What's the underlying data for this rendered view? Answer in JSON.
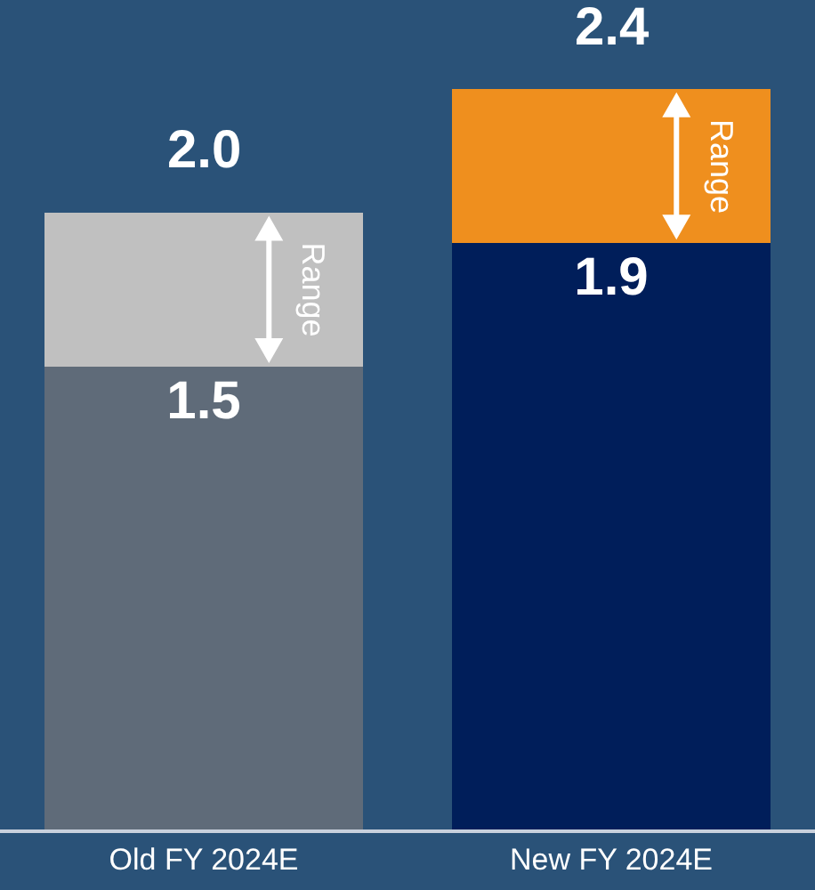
{
  "chart_data": {
    "type": "bar",
    "stacked": true,
    "categories": [
      "Old FY 2024E",
      "New FY 2024E"
    ],
    "series": [
      {
        "colors": [
          "#5f6b79",
          "#001e5a"
        ],
        "values": [
          1.5,
          1.9
        ],
        "value_labels": [
          "1.5",
          "1.9"
        ]
      },
      {
        "name": "Range",
        "colors": [
          "#c0c0c0",
          "#ef8f1e"
        ],
        "values": [
          0.5,
          0.5
        ]
      }
    ],
    "totals": [
      "2.0",
      "2.4"
    ],
    "legend": false,
    "tick_labels": "x"
  }
}
